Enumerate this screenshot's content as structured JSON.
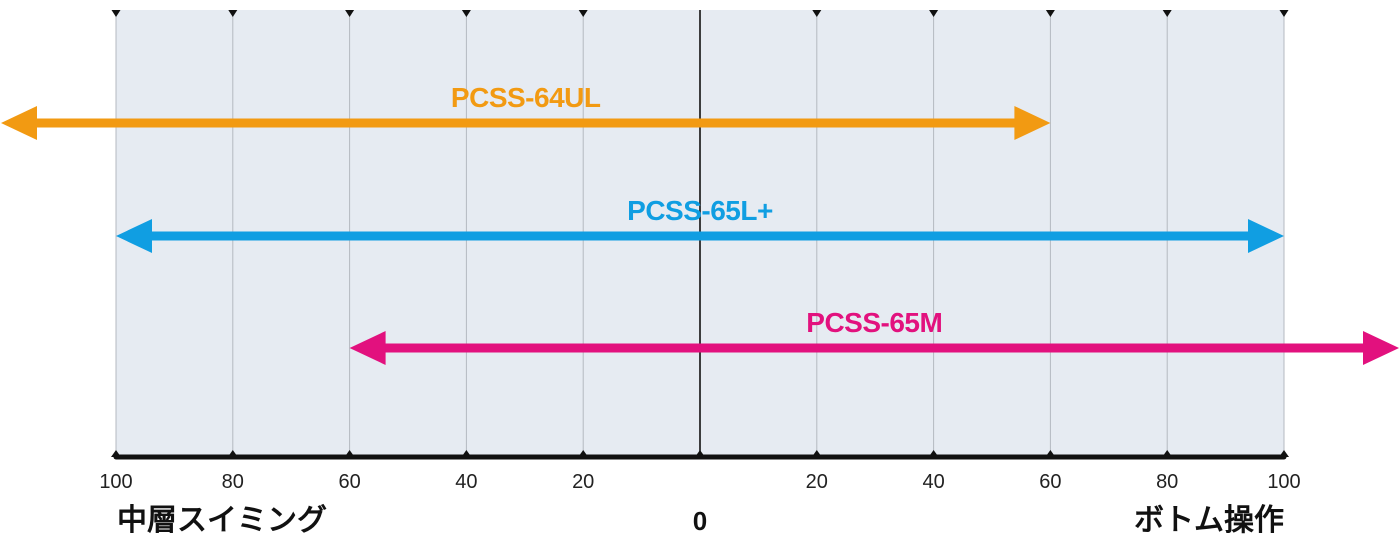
{
  "colors": {
    "panel": "#e6ebf2",
    "grid": "#b4b9c0",
    "axis": "#111111",
    "pcss_64ul": "#f29a12",
    "pcss_65lplus": "#109ee2",
    "pcss_65m": "#e2117e"
  },
  "axis": {
    "ticks": [
      {
        "label": "100",
        "pos": -100
      },
      {
        "label": "80",
        "pos": -80
      },
      {
        "label": "60",
        "pos": -60
      },
      {
        "label": "40",
        "pos": -40
      },
      {
        "label": "20",
        "pos": -20
      },
      {
        "label": "",
        "pos": 0
      },
      {
        "label": "20",
        "pos": 20
      },
      {
        "label": "40",
        "pos": 40
      },
      {
        "label": "60",
        "pos": 60
      },
      {
        "label": "80",
        "pos": 80
      },
      {
        "label": "100",
        "pos": 100
      }
    ],
    "zero_label": "0",
    "left_label": "中層スイミング",
    "right_label": "ボトム操作"
  },
  "ranges": [
    {
      "label": "PCSS-64UL",
      "from": -120,
      "to": 60,
      "color_key": "pcss_64ul"
    },
    {
      "label": "PCSS-65L+",
      "from": -100,
      "to": 100,
      "color_key": "pcss_65lplus"
    },
    {
      "label": "PCSS-65M",
      "from": -60,
      "to": 120,
      "color_key": "pcss_65m"
    }
  ]
}
